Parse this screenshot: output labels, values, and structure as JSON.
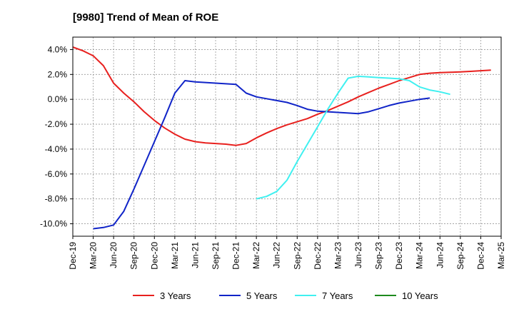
{
  "chart_data": {
    "type": "line",
    "title": "[9980]  Trend of Mean of ROE",
    "xlabel": "",
    "ylabel": "",
    "x_tick_labels": [
      "Dec-19",
      "Mar-20",
      "Jun-20",
      "Sep-20",
      "Dec-20",
      "Mar-21",
      "Jun-21",
      "Sep-21",
      "Dec-21",
      "Mar-22",
      "Jun-22",
      "Sep-22",
      "Dec-22",
      "Mar-23",
      "Jun-23",
      "Sep-23",
      "Dec-23",
      "Mar-24",
      "Jun-24",
      "Sep-24",
      "Dec-24",
      "Mar-25"
    ],
    "y_tick_labels": [
      "4.0%",
      "2.0%",
      "0.0%",
      "-2.0%",
      "-4.0%",
      "-6.0%",
      "-8.0%",
      "-10.0%"
    ],
    "y_tick_values": [
      4,
      2,
      0,
      -2,
      -4,
      -6,
      -8,
      -10
    ],
    "ylim": [
      -11.0,
      5.0
    ],
    "grid": true,
    "legend_position": "bottom",
    "series": [
      {
        "name": "3 Years",
        "color": "#e8201e",
        "start_index": 0,
        "values": [
          4.2,
          3.9,
          3.5,
          2.7,
          1.3,
          0.5,
          -0.2,
          -1.0,
          -1.7,
          -2.3,
          -2.8,
          -3.2,
          -3.4,
          -3.5,
          -3.55,
          -3.6,
          -3.7,
          -3.55,
          -3.1,
          -2.7,
          -2.35,
          -2.05,
          -1.8,
          -1.55,
          -1.2,
          -0.9,
          -0.55,
          -0.2,
          0.2,
          0.55,
          0.9,
          1.2,
          1.5,
          1.75,
          2.0,
          2.1,
          2.15,
          2.17,
          2.2,
          2.25,
          2.3,
          2.35
        ]
      },
      {
        "name": "5 Years",
        "color": "#1024c8",
        "start_index": 2,
        "values": [
          -10.4,
          -10.3,
          -10.1,
          -9.0,
          -7.2,
          -5.3,
          -3.4,
          -1.5,
          0.5,
          1.5,
          1.4,
          1.35,
          1.3,
          1.25,
          1.2,
          0.5,
          0.2,
          0.05,
          -0.1,
          -0.25,
          -0.5,
          -0.8,
          -0.95,
          -1.0,
          -1.05,
          -1.1,
          -1.15,
          -1.0,
          -0.75,
          -0.5,
          -0.3,
          -0.15,
          0.0,
          0.1
        ]
      },
      {
        "name": "7 Years",
        "color": "#40f0f0",
        "start_index": 18,
        "values": [
          -8.0,
          -7.8,
          -7.4,
          -6.5,
          -5.0,
          -3.6,
          -2.2,
          -0.8,
          0.5,
          1.7,
          1.85,
          1.8,
          1.75,
          1.7,
          1.65,
          1.5,
          1.0,
          0.75,
          0.6,
          0.4
        ]
      },
      {
        "name": "10 Years",
        "color": "#1d8a1d",
        "start_index": 41,
        "values": []
      }
    ]
  }
}
